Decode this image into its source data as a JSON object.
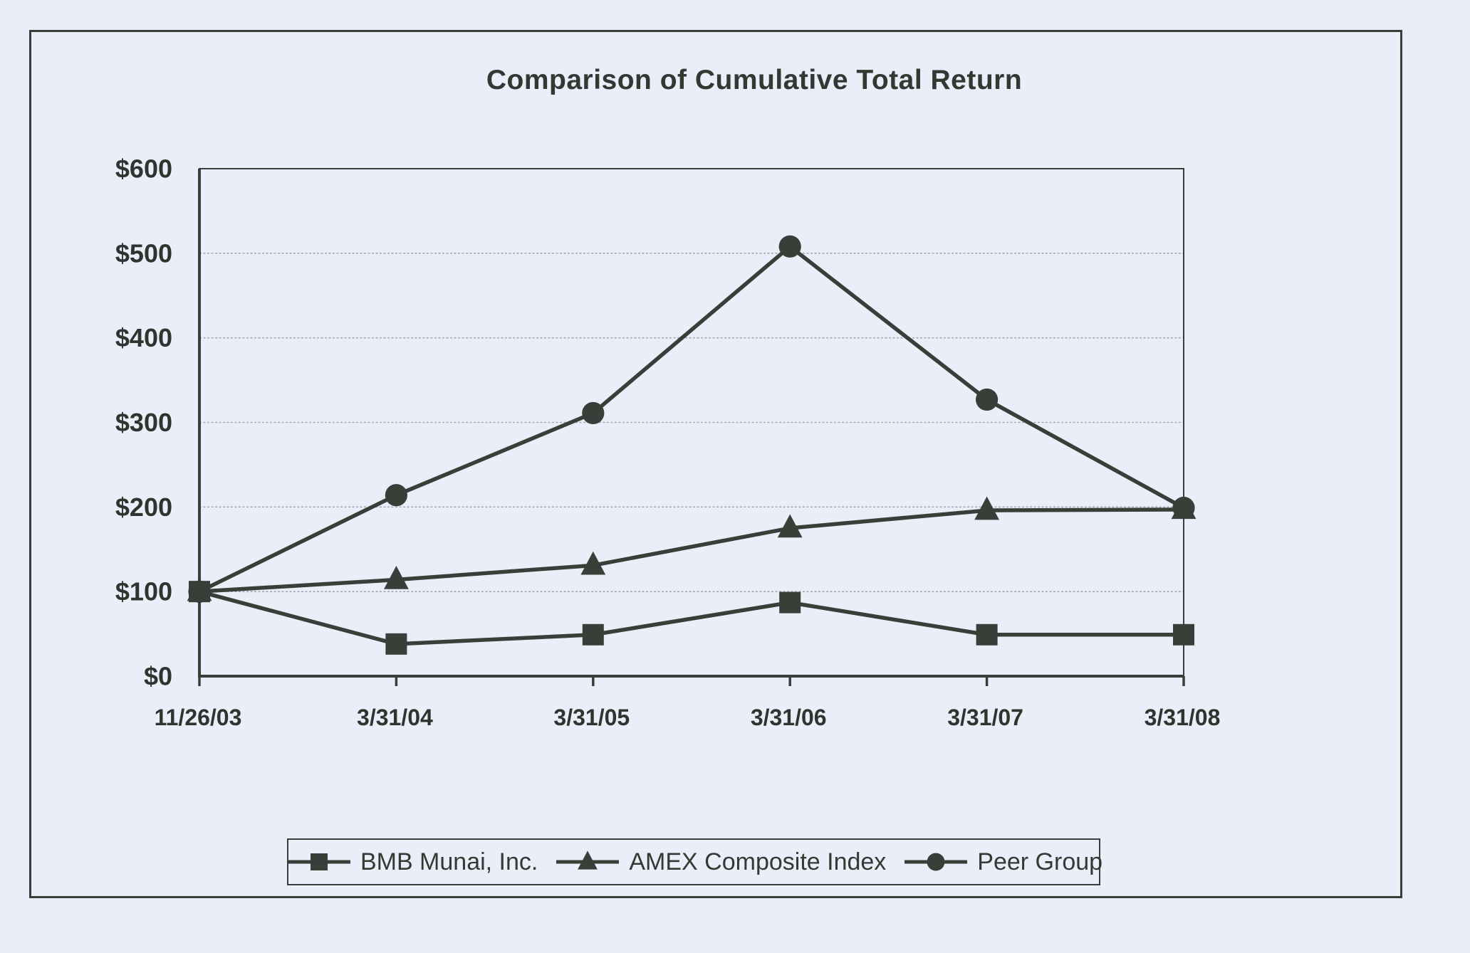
{
  "title": "Comparison of Cumulative Total Return",
  "colors": {
    "ink": "#3a3e38",
    "paper": "#e9edf7",
    "grid": "#a4aab4",
    "frame": "#3a3e38"
  },
  "chart_data": {
    "type": "line",
    "title": "Comparison of Cumulative Total Return",
    "categories": [
      "11/26/03",
      "3/31/04",
      "3/31/05",
      "3/31/06",
      "3/31/07",
      "3/31/08"
    ],
    "series": [
      {
        "name": "BMB Munai, Inc.",
        "marker": "square",
        "values": [
          100,
          38,
          49,
          87,
          49,
          49
        ]
      },
      {
        "name": "AMEX Composite Index",
        "marker": "triangle",
        "values": [
          100,
          114,
          131,
          175,
          196,
          197
        ]
      },
      {
        "name": "Peer Group",
        "marker": "circle",
        "values": [
          100,
          214,
          311,
          508,
          327,
          199
        ]
      }
    ],
    "y_ticks": [
      "$0",
      "$100",
      "$200",
      "$300",
      "$400",
      "$500",
      "$600"
    ],
    "ylim": [
      0,
      600
    ],
    "y_tick_step": 100,
    "grid": "horizontal",
    "legend_position": "bottom"
  }
}
